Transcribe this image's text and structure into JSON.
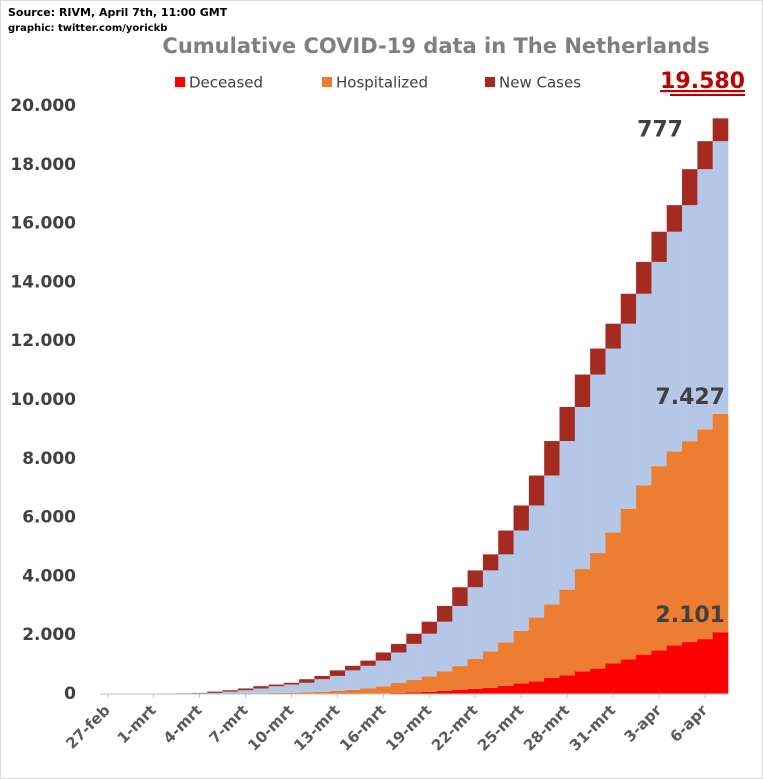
{
  "chart_data": {
    "type": "stacked_bar",
    "title": "Cumulative COVID-19 data in The Netherlands",
    "source": "Source: RIVM, April 7th, 11:00 GMT",
    "credit": "graphic: twitter.com/yorickb",
    "categories": [
      "27-feb",
      null,
      null,
      "1-mrt",
      null,
      null,
      "4-mrt",
      null,
      null,
      "7-mrt",
      null,
      null,
      "10-mrt",
      null,
      null,
      "13-mrt",
      null,
      null,
      "16-mrt",
      null,
      null,
      "19-mrt",
      null,
      null,
      "22-mrt",
      null,
      null,
      "25-mrt",
      null,
      null,
      "28-mrt",
      null,
      null,
      "31-mrt",
      null,
      null,
      "3-apr",
      null,
      null,
      "6-apr",
      null
    ],
    "series": [
      {
        "name": "Deceased",
        "color": "#ff0000",
        "values": [
          0,
          0,
          0,
          0,
          0,
          0,
          0,
          0,
          1,
          1,
          3,
          3,
          4,
          5,
          5,
          10,
          12,
          20,
          24,
          43,
          58,
          76,
          106,
          136,
          179,
          213,
          276,
          356,
          434,
          546,
          639,
          771,
          864,
          1039,
          1173,
          1339,
          1487,
          1651,
          1766,
          1867,
          2101
        ],
        "value_labels": [
          null,
          null,
          null,
          null,
          null,
          null,
          null,
          null,
          null,
          null,
          null,
          null,
          null,
          null,
          null,
          null,
          null,
          null,
          null,
          null,
          null,
          null,
          null,
          null,
          null,
          null,
          null,
          null,
          null,
          null,
          null,
          null,
          null,
          null,
          null,
          null,
          null,
          null,
          null,
          null,
          "2.101"
        ]
      },
      {
        "name": "Hospitalized",
        "color": "#ed7d31",
        "values": [
          0,
          0,
          0,
          0,
          0,
          0,
          2,
          5,
          10,
          16,
          22,
          30,
          40,
          55,
          70,
          100,
          130,
          170,
          230,
          330,
          420,
          520,
          660,
          814,
          1021,
          1237,
          1474,
          1794,
          2166,
          2504,
          2911,
          3479,
          3936,
          4461,
          5127,
          5761,
          6263,
          6599,
          6834,
          7133,
          7427
        ],
        "value_labels": [
          null,
          null,
          null,
          null,
          null,
          null,
          null,
          null,
          null,
          null,
          null,
          null,
          null,
          null,
          null,
          null,
          null,
          null,
          null,
          null,
          null,
          null,
          null,
          null,
          null,
          null,
          null,
          null,
          null,
          null,
          null,
          null,
          null,
          null,
          null,
          null,
          null,
          null,
          null,
          null,
          "7.427"
        ]
      },
      {
        "color": "#b4c7e7",
        "values": [
          0,
          1,
          2,
          7,
          10,
          18,
          22,
          33,
          71,
          111,
          163,
          232,
          277,
          322,
          428,
          504,
          662,
          769,
          881,
          1040,
          1227,
          1455,
          1694,
          2044,
          2431,
          2754,
          2999,
          3410,
          3812,
          4381,
          5053,
          5512,
          6066,
          6250,
          6295,
          6514,
          6947,
          7473,
          8027,
          8851,
          9275
        ]
      },
      {
        "name": "New Cases",
        "color": "#a52a1f",
        "values": [
          1,
          1,
          5,
          3,
          8,
          6,
          14,
          44,
          46,
          60,
          77,
          56,
          61,
          121,
          111,
          190,
          155,
          176,
          278,
          292,
          346,
          409,
          534,
          637,
          573,
          545,
          811,
          852,
          1019,
          1172,
          1159,
          1104,
          884,
          845,
          1019,
          1083,
          1026,
          904,
          1224,
          952,
          777
        ],
        "label_last": true
      }
    ],
    "total": {
      "value": 19580,
      "label": "19.580"
    },
    "ylim": [
      0,
      20000
    ],
    "yticks": [
      0,
      {
        "value": 2000,
        "label": "2.000"
      },
      {
        "value": 4000,
        "label": "4.000"
      },
      {
        "value": 6000,
        "label": "6.000"
      },
      {
        "value": 8000,
        "label": "8.000"
      },
      {
        "value": 10000,
        "label": "10.000"
      },
      {
        "value": 12000,
        "label": "12.000"
      },
      {
        "value": 14000,
        "label": "14.000"
      },
      {
        "value": 16000,
        "label": "16.000"
      },
      {
        "value": 18000,
        "label": "18.000"
      },
      {
        "value": 20000,
        "label": "20.000"
      }
    ]
  }
}
